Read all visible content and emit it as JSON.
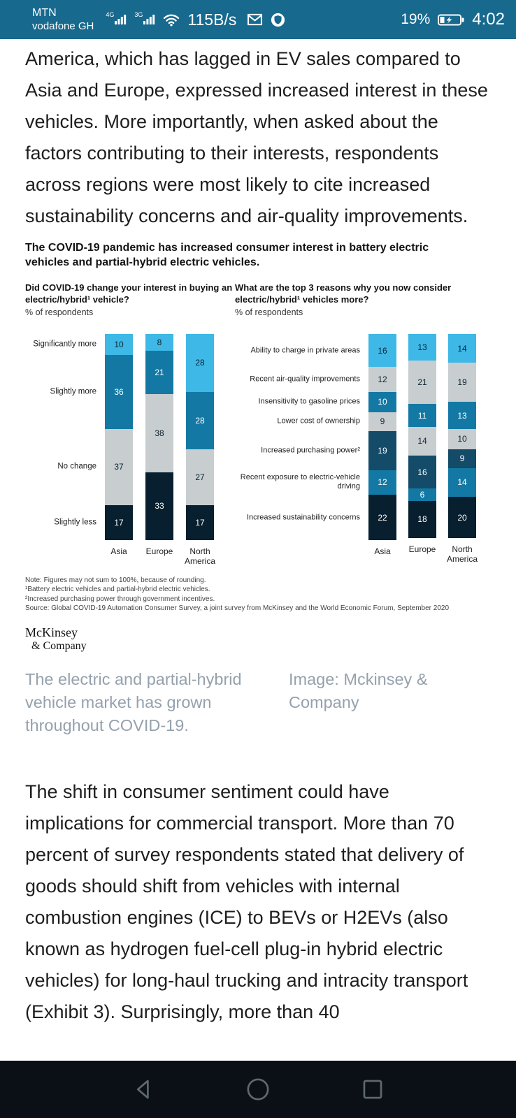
{
  "status_bar": {
    "carrier_line1": "MTN",
    "carrier_line2": "vodafone GH",
    "network_badge1": "4G",
    "network_badge2": "3G",
    "data_rate": "115B/s",
    "battery_percent": "19%",
    "time": "4:02",
    "icons": [
      "signal-bars-icon",
      "signal-bars-icon",
      "wifi-icon",
      "gmail-icon",
      "shield-icon",
      "battery-icon"
    ]
  },
  "colors": {
    "status_bar_bg": "#17698E",
    "nav_bar_bg": "#0B1016",
    "caption_text": "#95A1AD",
    "chart_cyan": "#3EB8E6",
    "chart_medium_blue": "#1379A4",
    "chart_gray": "#C8CDD0",
    "chart_dark_blue": "#134B68",
    "chart_navy": "#071F2E"
  },
  "article": {
    "paragraph1": "America, which has lagged in EV sales compared to Asia and Europe, expressed increased interest in these vehicles. More importantly, when asked about the factors contributing to their interests, respondents across regions were most likely to cite increased sustainability concerns and air-quality improvements.",
    "paragraph2": "The shift in consumer sentiment could have implications for commercial transport. More than 70 percent of survey respondents stated that delivery of goods should shift from vehicles with internal combustion engines (ICE) to BEVs or H2EVs (also known as hydrogen fuel-cell plug-in hybrid electric vehicles) for long-haul trucking and intracity transport (Exhibit 3). Surprisingly, more than 40"
  },
  "exhibit": {
    "title": "The COVID-19 pandemic has increased consumer interest in battery electric vehicles and partial-hybrid electric vehicles.",
    "footnotes": [
      "Note: Figures may not sum to 100%, because of rounding.",
      "¹Battery electric vehicles and partial-hybrid electric vehicles.",
      "²Increased purchasing power through government incentives.",
      "Source: Global COVID-19 Automation Consumer Survey, a joint survey from McKinsey and the World Economic Forum, September 2020"
    ],
    "logo_line1": "McKinsey",
    "logo_line2": "& Company"
  },
  "caption": {
    "text": "The electric and partial-hybrid vehicle market has grown throughout COVID-19.",
    "credit": "Image: Mckinsey & Company"
  },
  "nav_bar": {
    "icons": [
      "back-button",
      "home-button",
      "recents-button"
    ]
  },
  "chart_data": [
    {
      "type": "bar",
      "stacked": true,
      "title": "Did COVID-19 change your interest in buying an electric/hybrid¹ vehicle?",
      "ylabel": "% of respondents",
      "ylim": [
        0,
        100
      ],
      "grid": false,
      "legend_position": "left-row-labels",
      "categories": [
        "Asia",
        "Europe",
        "North America"
      ],
      "series": [
        {
          "name": "Significantly more",
          "values": [
            10,
            8,
            28
          ],
          "color": "#3EB8E6",
          "text_color": "#0A2533"
        },
        {
          "name": "Slightly more",
          "values": [
            36,
            21,
            28
          ],
          "color": "#1379A4",
          "text_color": "#FFFFFF"
        },
        {
          "name": "No change",
          "values": [
            37,
            38,
            27
          ],
          "color": "#C8CDD0",
          "text_color": "#0A2533"
        },
        {
          "name": "Slightly less",
          "values": [
            17,
            33,
            17
          ],
          "color": "#071F2E",
          "text_color": "#FFFFFF"
        }
      ]
    },
    {
      "type": "bar",
      "stacked": true,
      "title": "What are the top 3 reasons why you now consider electric/hybrid¹ vehicles more?",
      "ylabel": "% of respondents",
      "ylim": [
        0,
        100
      ],
      "grid": false,
      "legend_position": "left-row-labels",
      "categories": [
        "Asia",
        "Europe",
        "North America"
      ],
      "series": [
        {
          "name": "Ability to charge in private areas",
          "values": [
            16,
            13,
            14
          ],
          "color": "#3EB8E6",
          "text_color": "#0A2533"
        },
        {
          "name": "Recent air-quality improvements",
          "values": [
            12,
            21,
            19
          ],
          "color": "#C8CDD0",
          "text_color": "#0A2533"
        },
        {
          "name": "Insensitivity to gasoline prices",
          "values": [
            10,
            11,
            13
          ],
          "color": "#1379A4",
          "text_color": "#FFFFFF"
        },
        {
          "name": "Lower cost of ownership",
          "values": [
            9,
            14,
            10
          ],
          "color": "#C8CDD0",
          "text_color": "#0A2533"
        },
        {
          "name": "Increased purchasing power²",
          "values": [
            19,
            16,
            9
          ],
          "color": "#134B68",
          "text_color": "#FFFFFF"
        },
        {
          "name": "Recent exposure to electric-vehicle driving",
          "values": [
            12,
            6,
            14
          ],
          "color": "#1379A4",
          "text_color": "#FFFFFF"
        },
        {
          "name": "Increased sustainability concerns",
          "values": [
            22,
            18,
            20
          ],
          "color": "#071F2E",
          "text_color": "#FFFFFF"
        }
      ]
    }
  ]
}
